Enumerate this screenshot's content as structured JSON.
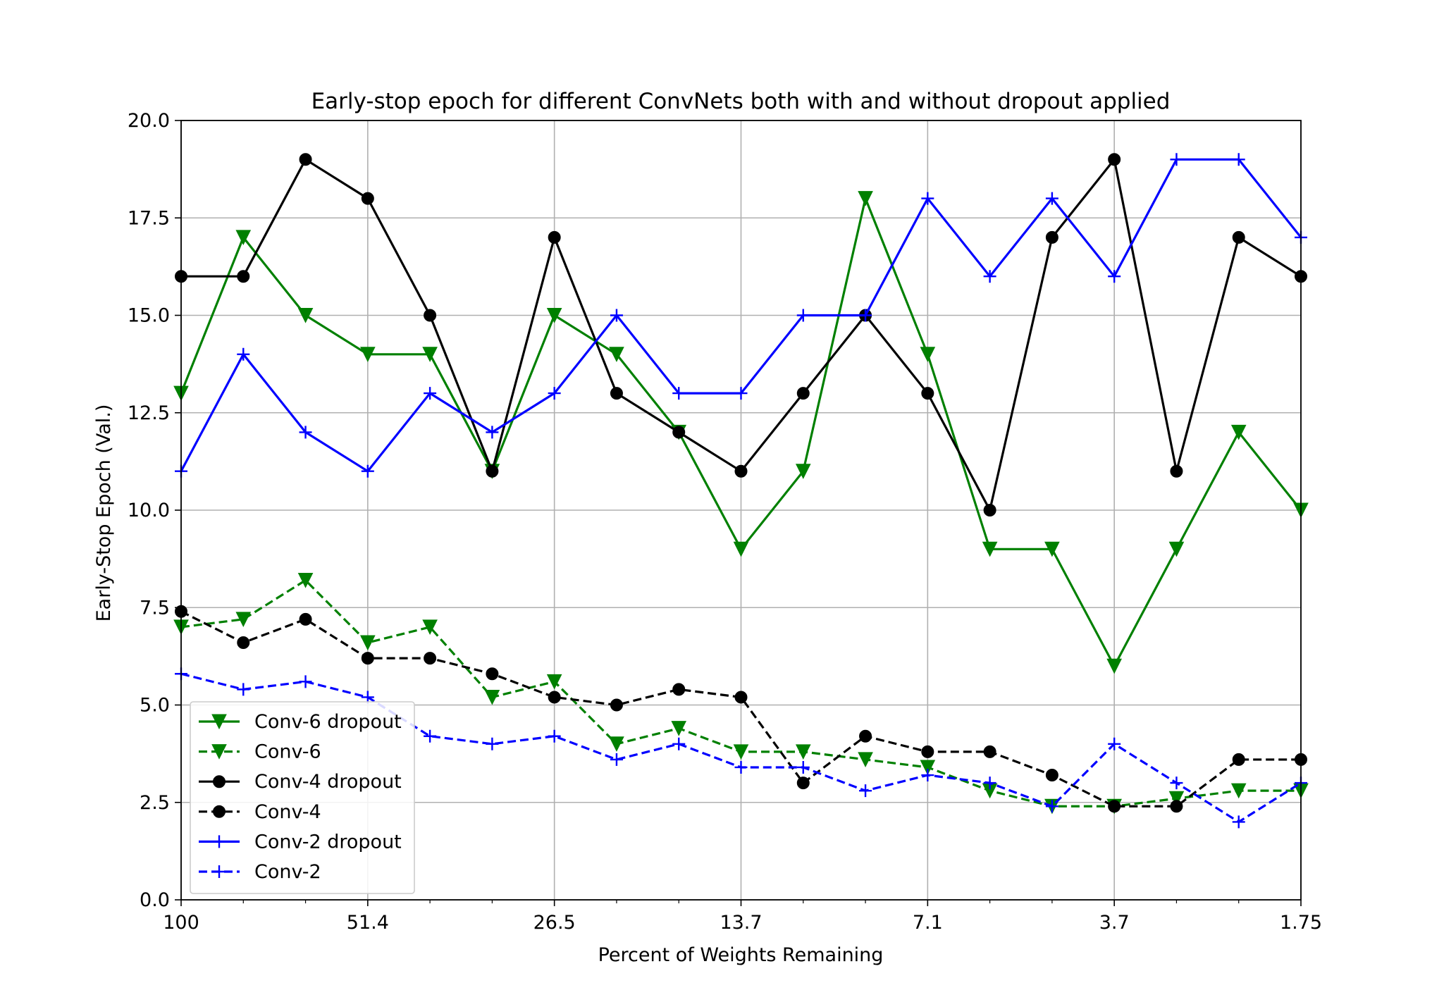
{
  "chart_data": {
    "type": "line",
    "title": "Early-stop epoch for different ConvNets both with and without dropout applied",
    "xlabel": "Percent of Weights Remaining",
    "ylabel": "Early-Stop Epoch (Val.)",
    "ylim": [
      0,
      20
    ],
    "grid": true,
    "legend_position": "lower-left",
    "x_count": 19,
    "x_ticks": [
      {
        "index": 0,
        "label": "100"
      },
      {
        "index": 3,
        "label": "51.4"
      },
      {
        "index": 6,
        "label": "26.5"
      },
      {
        "index": 9,
        "label": "13.7"
      },
      {
        "index": 12,
        "label": "7.1"
      },
      {
        "index": 15,
        "label": "3.7"
      },
      {
        "index": 18,
        "label": "1.75"
      }
    ],
    "y_ticks": [
      "0.0",
      "2.5",
      "5.0",
      "7.5",
      "10.0",
      "12.5",
      "15.0",
      "17.5",
      "20.0"
    ],
    "series": [
      {
        "name": "Conv-6 dropout",
        "color": "#008000",
        "dash": "solid",
        "marker": "triangle-down",
        "values": [
          13,
          17,
          15,
          14,
          14,
          11,
          15,
          14,
          12,
          9,
          11,
          18,
          14,
          9,
          9,
          6,
          9,
          12,
          10
        ]
      },
      {
        "name": "Conv-6",
        "color": "#008000",
        "dash": "dashed",
        "marker": "triangle-down",
        "values": [
          7.0,
          7.2,
          8.2,
          6.6,
          7.0,
          5.2,
          5.6,
          4.0,
          4.4,
          3.8,
          3.8,
          3.6,
          3.4,
          2.8,
          2.4,
          2.4,
          2.6,
          2.8,
          2.8
        ]
      },
      {
        "name": "Conv-4 dropout",
        "color": "#000000",
        "dash": "solid",
        "marker": "circle",
        "values": [
          16,
          16,
          19,
          18,
          15,
          11,
          17,
          13,
          12,
          11,
          13,
          15,
          13,
          10,
          17,
          19,
          11,
          17,
          16
        ]
      },
      {
        "name": "Conv-4",
        "color": "#000000",
        "dash": "dashed",
        "marker": "circle",
        "values": [
          7.4,
          6.6,
          7.2,
          6.2,
          6.2,
          5.8,
          5.2,
          5.0,
          5.4,
          5.2,
          3.0,
          4.2,
          3.8,
          3.8,
          3.2,
          2.4,
          2.4,
          3.6,
          3.6
        ]
      },
      {
        "name": "Conv-2 dropout",
        "color": "#0000ff",
        "dash": "solid",
        "marker": "plus",
        "values": [
          11,
          14,
          12,
          11,
          13,
          12,
          13,
          15,
          13,
          13,
          15,
          15,
          18,
          16,
          18,
          16,
          19,
          19,
          17
        ]
      },
      {
        "name": "Conv-2",
        "color": "#0000ff",
        "dash": "dashed",
        "marker": "plus",
        "values": [
          5.8,
          5.4,
          5.6,
          5.2,
          4.2,
          4.0,
          4.2,
          3.6,
          4.0,
          3.4,
          3.4,
          2.8,
          3.2,
          3.0,
          2.4,
          4.0,
          3.0,
          2.0,
          3.0
        ]
      }
    ]
  }
}
